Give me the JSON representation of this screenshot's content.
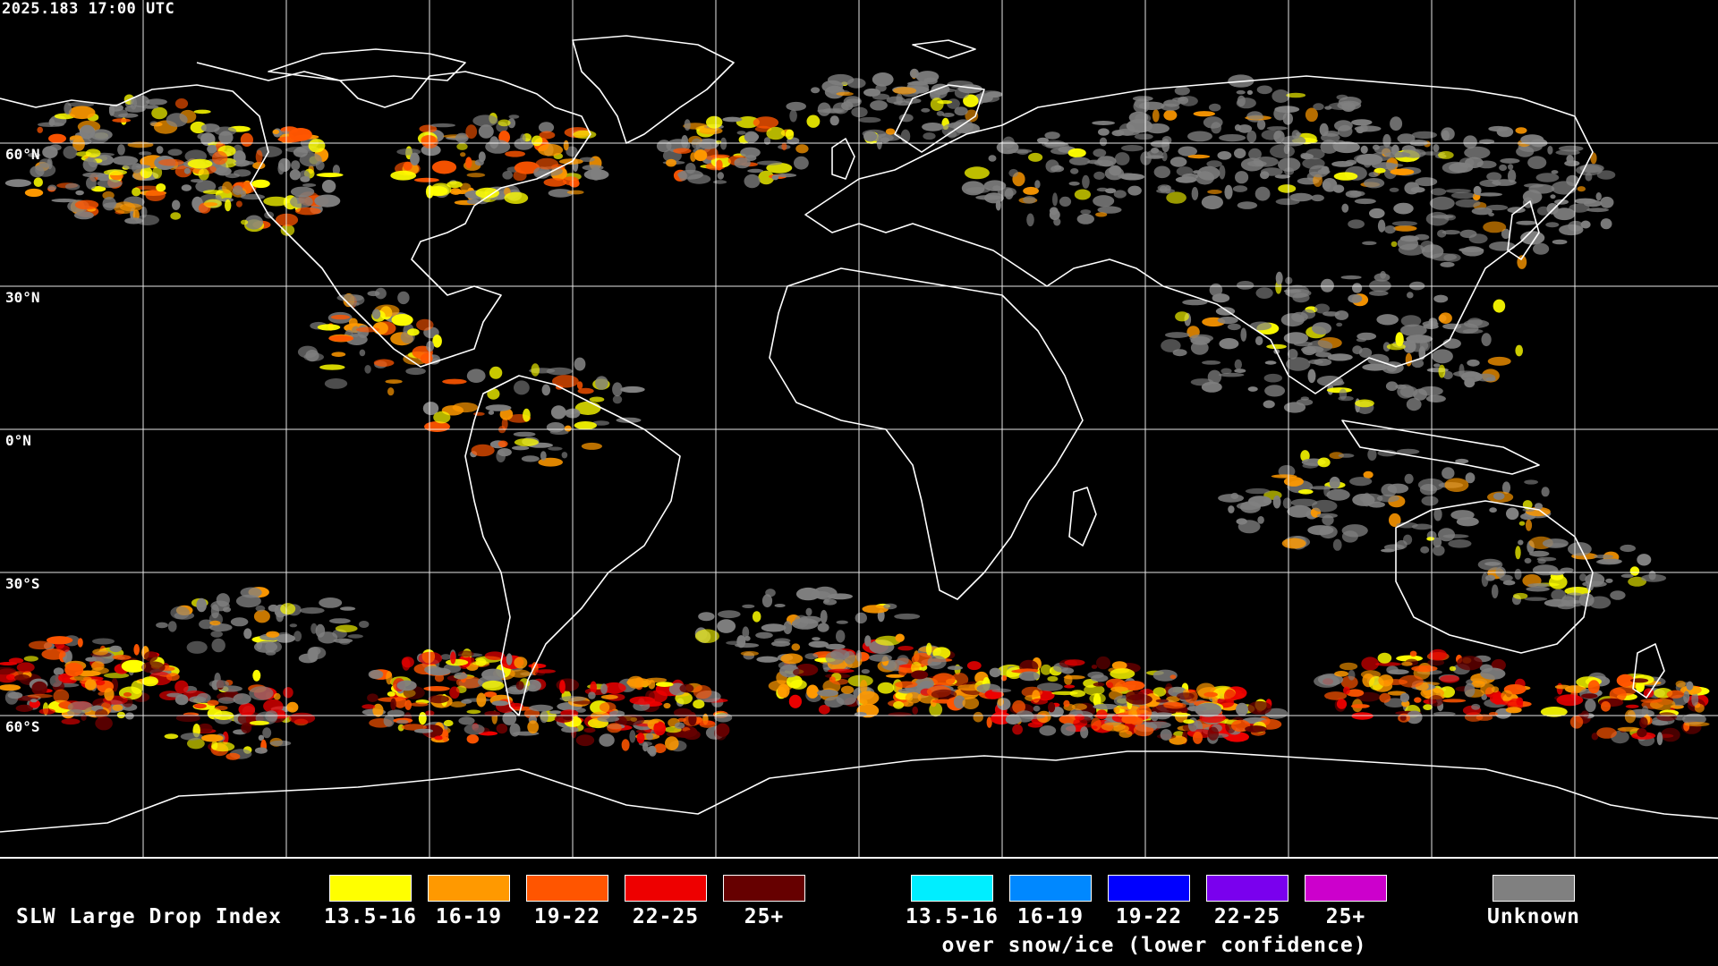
{
  "map": {
    "timestamp": "2025.183 17:00 UTC",
    "lat_labels": [
      "60°N",
      "30°N",
      "0°N",
      "30°S",
      "60°S"
    ]
  },
  "legend": {
    "title": "SLW Large Drop Index",
    "standard": [
      {
        "label": "13.5-16",
        "color": "#ffff00"
      },
      {
        "label": "16-19",
        "color": "#ff9900"
      },
      {
        "label": "19-22",
        "color": "#ff5500"
      },
      {
        "label": "22-25",
        "color": "#ee0000"
      },
      {
        "label": "25+",
        "color": "#660000"
      }
    ],
    "snow_ice": [
      {
        "label": "13.5-16",
        "color": "#00eeff"
      },
      {
        "label": "16-19",
        "color": "#0088ff"
      },
      {
        "label": "19-22",
        "color": "#0000ff"
      },
      {
        "label": "22-25",
        "color": "#7a00ee"
      },
      {
        "label": "25+",
        "color": "#cc00cc"
      }
    ],
    "snow_ice_caption": "over snow/ice (lower confidence)",
    "unknown": {
      "label": "Unknown",
      "color": "#808080"
    }
  }
}
